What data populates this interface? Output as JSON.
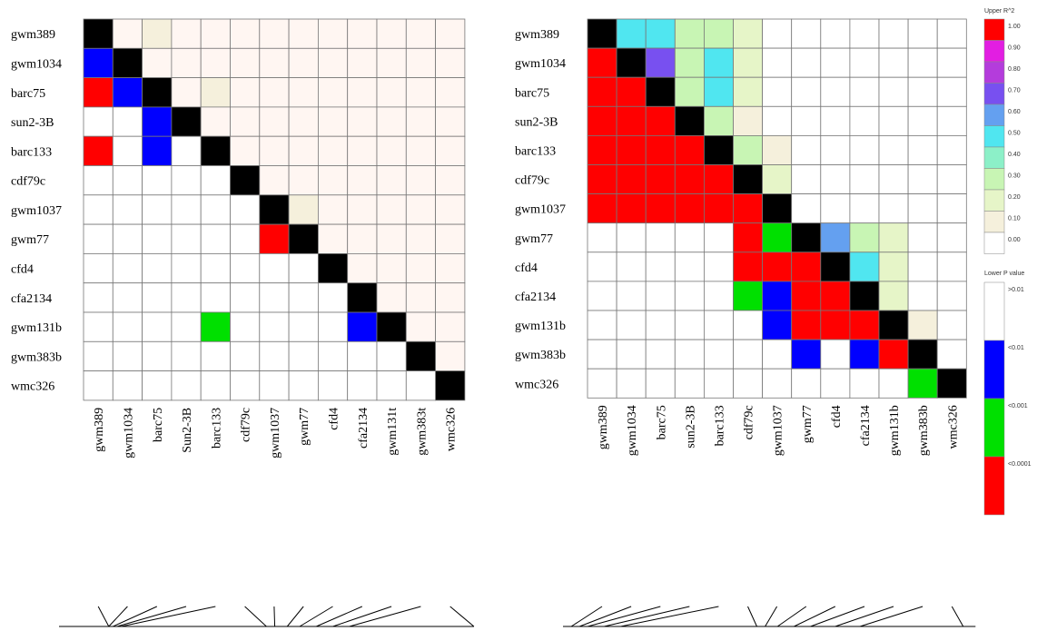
{
  "chart_data": [
    {
      "type": "heatmap",
      "title": "",
      "markers_rows": [
        "gwm389",
        "gwm1034",
        "barc75",
        "sun2-3B",
        "barc133",
        "cdf79c",
        "gwm1037",
        "gwm77",
        "cfd4",
        "cfa2134",
        "gwm131b",
        "gwm383b",
        "wmc326"
      ],
      "markers_cols": [
        "gwm389",
        "gwm1034",
        "barc75",
        "Sun2-3B",
        "barc133",
        "cdf79c",
        "gwm1037",
        "gwm77",
        "cfd4",
        "cfa2134",
        "gwm131t",
        "gwm383t",
        "wmc326"
      ],
      "upper_r2_classes": [
        [
          null,
          0,
          0.1,
          0,
          0,
          0,
          0,
          0,
          0,
          0,
          0,
          0,
          0
        ],
        [
          null,
          null,
          0,
          0,
          0,
          0,
          0,
          0,
          0,
          0,
          0,
          0,
          0
        ],
        [
          null,
          null,
          null,
          0,
          0.1,
          0,
          0,
          0,
          0,
          0,
          0,
          0,
          0
        ],
        [
          null,
          null,
          null,
          null,
          0,
          0,
          0,
          0,
          0,
          0,
          0,
          0,
          0
        ],
        [
          null,
          null,
          null,
          null,
          null,
          0,
          0,
          0,
          0,
          0,
          0,
          0,
          0
        ],
        [
          null,
          null,
          null,
          null,
          null,
          null,
          0,
          0,
          0,
          0,
          0,
          0,
          0
        ],
        [
          null,
          null,
          null,
          null,
          null,
          null,
          null,
          0.1,
          0,
          0,
          0,
          0,
          0
        ],
        [
          null,
          null,
          null,
          null,
          null,
          null,
          null,
          null,
          0,
          0,
          0,
          0,
          0
        ],
        [
          null,
          null,
          null,
          null,
          null,
          null,
          null,
          null,
          null,
          0,
          0,
          0,
          0
        ],
        [
          null,
          null,
          null,
          null,
          null,
          null,
          null,
          null,
          null,
          null,
          0,
          0,
          0
        ],
        [
          null,
          null,
          null,
          null,
          null,
          null,
          null,
          null,
          null,
          null,
          null,
          0,
          0
        ],
        [
          null,
          null,
          null,
          null,
          null,
          null,
          null,
          null,
          null,
          null,
          null,
          null,
          0
        ],
        [
          null,
          null,
          null,
          null,
          null,
          null,
          null,
          null,
          null,
          null,
          null,
          null,
          null
        ]
      ],
      "lower_p_classes": [
        [],
        [
          ">0.01-blue"
        ],
        [
          "<0.0001",
          "<0.01"
        ],
        [
          ">0.01",
          ">0.01",
          "<0.01"
        ],
        [
          "<0.0001",
          ">0.01",
          "<0.01",
          ">0.01"
        ],
        [
          ">0.01",
          ">0.01",
          ">0.01",
          ">0.01",
          ">0.01"
        ],
        [
          ">0.01",
          ">0.01",
          ">0.01",
          ">0.01",
          ">0.01",
          ">0.01"
        ],
        [
          ">0.01",
          ">0.01",
          ">0.01",
          ">0.01",
          ">0.01",
          ">0.01",
          "<0.0001"
        ],
        [
          ">0.01",
          ">0.01",
          ">0.01",
          ">0.01",
          ">0.01",
          ">0.01",
          ">0.01",
          ">0.01"
        ],
        [
          ">0.01",
          ">0.01",
          ">0.01",
          ">0.01",
          ">0.01",
          ">0.01",
          ">0.01",
          ">0.01",
          ">0.01"
        ],
        [
          ">0.01",
          ">0.01",
          ">0.01",
          ">0.01",
          "<0.001",
          ">0.01",
          ">0.01",
          ">0.01",
          ">0.01",
          "<0.01"
        ],
        [
          ">0.01",
          ">0.01",
          ">0.01",
          ">0.01",
          ">0.01",
          ">0.01",
          ">0.01",
          ">0.01",
          ">0.01",
          ">0.01",
          ">0.01"
        ],
        [
          ">0.01",
          ">0.01",
          ">0.01",
          ">0.01",
          ">0.01",
          ">0.01",
          ">0.01",
          ">0.01",
          ">0.01",
          ">0.01",
          ">0.01",
          ">0.01"
        ]
      ],
      "map_positions": [
        0.12,
        0.12,
        0.13,
        0.14,
        0.15,
        0.5,
        0.52,
        0.55,
        0.58,
        0.62,
        0.66,
        0.7,
        1.0
      ]
    },
    {
      "type": "heatmap",
      "title": "",
      "markers_rows": [
        "gwm389",
        "gwm1034",
        "barc75",
        "sun2-3B",
        "barc133",
        "cdf79c",
        "gwm1037",
        "gwm77",
        "cfd4",
        "cfa2134",
        "gwm131b",
        "gwm383b",
        "wmc326"
      ],
      "markers_cols": [
        "gwm389",
        "gwm1034",
        "barc75",
        "sun2-3B",
        "barc133",
        "cdf79c",
        "gwm1037",
        "gwm77",
        "cfd4",
        "cfa2134",
        "gwm131b",
        "gwm383b",
        "wmc326"
      ],
      "upper_r2_classes": [
        [
          null,
          0.5,
          0.5,
          0.3,
          0.3,
          0.2,
          0,
          0,
          0,
          0,
          0,
          0,
          0
        ],
        [
          null,
          null,
          0.7,
          0.3,
          0.5,
          0.2,
          0,
          0,
          0,
          0,
          0,
          0,
          0
        ],
        [
          null,
          null,
          null,
          0.3,
          0.5,
          0.2,
          0,
          0,
          0,
          0,
          0,
          0,
          0
        ],
        [
          null,
          null,
          null,
          null,
          0.3,
          0.1,
          0,
          0,
          0,
          0,
          0,
          0,
          0
        ],
        [
          null,
          null,
          null,
          null,
          null,
          0.3,
          0.1,
          0,
          0,
          0,
          0,
          0,
          0
        ],
        [
          null,
          null,
          null,
          null,
          null,
          null,
          0.2,
          0,
          0,
          0,
          0,
          0,
          0
        ],
        [
          null,
          null,
          null,
          null,
          null,
          null,
          null,
          0,
          0,
          0,
          0,
          0,
          0
        ],
        [
          null,
          null,
          null,
          null,
          null,
          null,
          null,
          null,
          0.6,
          0.3,
          0.2,
          0,
          0
        ],
        [
          null,
          null,
          null,
          null,
          null,
          null,
          null,
          null,
          null,
          0.5,
          0.2,
          0,
          0
        ],
        [
          null,
          null,
          null,
          null,
          null,
          null,
          null,
          null,
          null,
          null,
          0.2,
          0,
          0
        ],
        [
          null,
          null,
          null,
          null,
          null,
          null,
          null,
          null,
          null,
          null,
          null,
          0.1,
          0
        ],
        [
          null,
          null,
          null,
          null,
          null,
          null,
          null,
          null,
          null,
          null,
          null,
          null,
          0
        ],
        [
          null,
          null,
          null,
          null,
          null,
          null,
          null,
          null,
          null,
          null,
          null,
          null,
          null
        ]
      ],
      "lower_p_classes": [
        [],
        [
          "<0.0001"
        ],
        [
          "<0.0001",
          "<0.0001"
        ],
        [
          "<0.0001",
          "<0.0001",
          "<0.0001"
        ],
        [
          "<0.0001",
          "<0.0001",
          "<0.0001",
          "<0.0001"
        ],
        [
          "<0.0001",
          "<0.0001",
          "<0.0001",
          "<0.0001",
          "<0.0001"
        ],
        [
          "<0.0001",
          "<0.0001",
          "<0.0001",
          "<0.0001",
          "<0.0001",
          "<0.0001"
        ],
        [
          ">0.01",
          ">0.01",
          ">0.01",
          ">0.01",
          ">0.01",
          "<0.0001",
          "<0.001"
        ],
        [
          ">0.01",
          ">0.01",
          ">0.01",
          ">0.01",
          ">0.01",
          "<0.0001",
          "<0.0001",
          "<0.0001"
        ],
        [
          ">0.01",
          ">0.01",
          ">0.01",
          ">0.01",
          ">0.01",
          "<0.001",
          "<0.01",
          "<0.0001",
          "<0.0001"
        ],
        [
          ">0.01",
          ">0.01",
          ">0.01",
          ">0.01",
          ">0.01",
          ">0.01",
          "<0.01",
          "<0.0001",
          "<0.0001",
          "<0.0001"
        ],
        [
          ">0.01",
          ">0.01",
          ">0.01",
          ">0.01",
          ">0.01",
          ">0.01",
          ">0.01",
          "<0.01",
          ">0.01",
          "<0.01",
          "<0.0001"
        ],
        [
          ">0.01",
          ">0.01",
          ">0.01",
          ">0.01",
          ">0.01",
          ">0.01",
          ">0.01",
          ">0.01",
          ">0.01",
          ">0.01",
          ">0.01",
          "<0.001"
        ]
      ],
      "map_positions": [
        0.02,
        0.04,
        0.06,
        0.1,
        0.14,
        0.47,
        0.49,
        0.52,
        0.56,
        0.6,
        0.66,
        0.72,
        0.97
      ]
    }
  ],
  "legend": {
    "upper_title": "Upper R^2",
    "upper_labels": [
      "1.00",
      "0.90",
      "0.80",
      "0.70",
      "0.60",
      "0.50",
      "0.40",
      "0.30",
      "0.20",
      "0.10",
      "0.00"
    ],
    "upper_colors": [
      "#ff0000",
      "#e21ee2",
      "#b43cdc",
      "#7850f0",
      "#64a0f0",
      "#50e6f0",
      "#8cf0c8",
      "#c8f5b4",
      "#e6f5c8",
      "#f5f0dc",
      "#ffffff"
    ],
    "lower_title": "Lower P value",
    "lower_labels": [
      ">0.01",
      "<0.01",
      "<0.001",
      "<0.0001"
    ],
    "lower_colors": [
      "#ffffff",
      "#0000ff",
      "#00e000",
      "#ff0000"
    ]
  },
  "colors": {
    "diagonal": "#000000",
    "upper_faint": "#fff6f2",
    "grid_line": "#777777",
    "p_gt001": "#ffffff",
    "p_lt001": "#0000ff",
    "p_lt0001": "#00e000",
    "p_lt00001": "#ff0000"
  }
}
